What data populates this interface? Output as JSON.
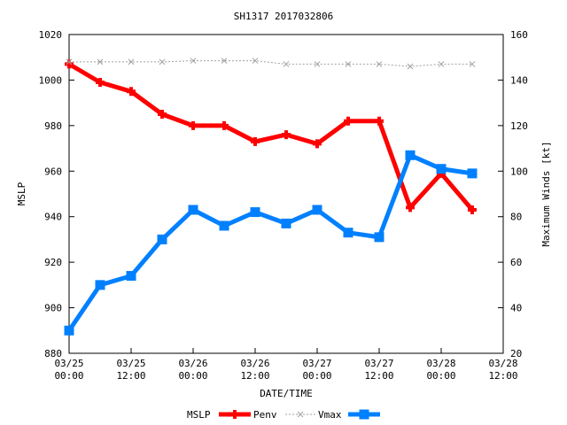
{
  "chart_data": {
    "type": "line",
    "title": "SH1317 2017032806",
    "xlabel": "DATE/TIME",
    "ylabel_left": "MSLP",
    "ylabel_right": "Maximum Winds [kt]",
    "x_ticks": [
      {
        "line1": "03/25",
        "line2": "00:00"
      },
      {
        "line1": "03/25",
        "line2": "12:00"
      },
      {
        "line1": "03/26",
        "line2": "00:00"
      },
      {
        "line1": "03/26",
        "line2": "12:00"
      },
      {
        "line1": "03/27",
        "line2": "00:00"
      },
      {
        "line1": "03/27",
        "line2": "12:00"
      },
      {
        "line1": "03/28",
        "line2": "00:00"
      },
      {
        "line1": "03/28",
        "line2": "12:00"
      }
    ],
    "x_hours": [
      0,
      6,
      12,
      18,
      24,
      30,
      36,
      42,
      48,
      54,
      60,
      66,
      72,
      78
    ],
    "xlim_hours": [
      0,
      84
    ],
    "y_left": {
      "lim": [
        880,
        1020
      ],
      "ticks": [
        880,
        900,
        920,
        940,
        960,
        980,
        1000,
        1020
      ]
    },
    "y_right": {
      "lim": [
        20,
        160
      ],
      "ticks": [
        20,
        40,
        60,
        80,
        100,
        120,
        140,
        160
      ]
    },
    "legend": {
      "title": "MSLP",
      "position": "bottom"
    },
    "series": [
      {
        "name": "Penv",
        "axis": "left",
        "color": "#ff0000",
        "marker": "plus",
        "values": [
          1007,
          999,
          995,
          985,
          980,
          980,
          973,
          976,
          972,
          982,
          982,
          944,
          959,
          943
        ]
      },
      {
        "name": "Vmax",
        "axis": "left",
        "color": "#a0a0a0",
        "marker": "x",
        "dashed": true,
        "values": [
          1008,
          1008,
          1008,
          1008,
          1008.5,
          1008.5,
          1008.5,
          1007,
          1007,
          1007,
          1007,
          1006,
          1007,
          1007
        ]
      },
      {
        "name": "",
        "axis": "right",
        "color": "#0080ff",
        "marker": "square",
        "values": [
          30,
          50,
          54,
          70,
          83,
          76,
          82,
          77,
          83,
          73,
          71,
          107,
          101,
          99
        ]
      }
    ]
  }
}
